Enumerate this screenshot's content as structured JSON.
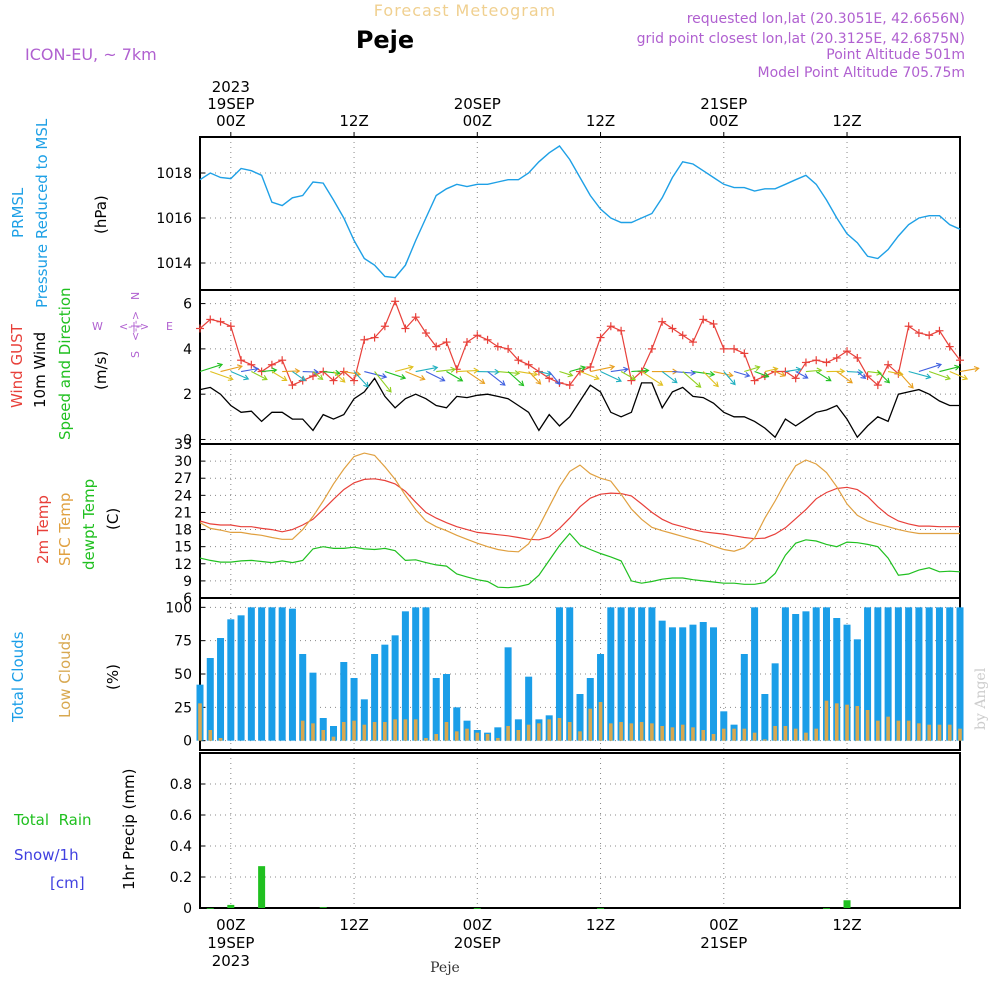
{
  "header": {
    "title": "Forecast Meteogram",
    "location": "Peje",
    "model": "ICON-EU, ~ 7km",
    "requested": "requested lon,lat (20.3051E, 42.6656N)",
    "gridpoint": "grid point closest lon,lat (20.3125E, 42.6875N)",
    "point_altitude": "Point Altitude 501m",
    "model_altitude": "Model Point Altitude 705.75m",
    "footer_location": "Peje",
    "watermark": "by Angel"
  },
  "colors": {
    "pressure": "#1ea0e6",
    "gust": "#e8403a",
    "wind": "#000000",
    "wind_dir": "#20c020",
    "temp2m": "#e8403a",
    "sfc_temp": "#e0a040",
    "dewpt": "#20c020",
    "total_clouds": "#1a9ee8",
    "low_clouds": "#d8a850",
    "rain": "#20c020",
    "snow": "#4040e0",
    "annotation": "#b060d0",
    "title": "#f0d090"
  },
  "time_axis": {
    "top_labels": [
      {
        "t": 0,
        "lines": [
          "2023",
          "19SEP",
          "00Z"
        ]
      },
      {
        "t": 12,
        "lines": [
          "12Z"
        ]
      },
      {
        "t": 24,
        "lines": [
          "20SEP",
          "00Z"
        ]
      },
      {
        "t": 36,
        "lines": [
          "12Z"
        ]
      },
      {
        "t": 48,
        "lines": [
          "21SEP",
          "00Z"
        ]
      },
      {
        "t": 60,
        "lines": [
          "12Z"
        ]
      }
    ],
    "bottom_labels": [
      {
        "t": 0,
        "lines": [
          "00Z",
          "19SEP",
          "2023"
        ]
      },
      {
        "t": 12,
        "lines": [
          "12Z"
        ]
      },
      {
        "t": 24,
        "lines": [
          "00Z",
          "20SEP"
        ]
      },
      {
        "t": 36,
        "lines": [
          "12Z"
        ]
      },
      {
        "t": 48,
        "lines": [
          "00Z",
          "21SEP"
        ]
      },
      {
        "t": 60,
        "lines": [
          "12Z"
        ]
      }
    ],
    "range_hours": [
      -3,
      71
    ]
  },
  "panel_labels": {
    "pressure": {
      "name1": "PRMSL",
      "name2": "Pressure Reduced to MSL",
      "unit": "(hPa)"
    },
    "wind": {
      "gust": "Wind GUST",
      "wind": "10m Wind",
      "dir": "Speed and Direction",
      "unit": "(m/s)",
      "compass_n": "N",
      "compass_s": "S",
      "compass_w": "W",
      "compass_e": "E",
      "compass_arrows": "<-|->"
    },
    "temp": {
      "t2m": "2m Temp",
      "sfc": "SFC Temp",
      "dew": "dewpt Temp",
      "unit": "(C)"
    },
    "clouds": {
      "total": "Total Clouds",
      "low": "Low Clouds",
      "unit": "(%)"
    },
    "precip": {
      "rain": "Total  Rain",
      "snow": "Snow/1h",
      "snow_unit": "[cm]",
      "unit": "1hr Precip (mm)"
    }
  },
  "chart_data": [
    {
      "type": "line",
      "id": "pressure",
      "ylabel": "PRMSL Pressure Reduced to MSL (hPa)",
      "ylim": [
        1012.8,
        1019.6
      ],
      "yticks": [
        1014,
        1016,
        1018
      ],
      "x": [
        -3,
        -2,
        -1,
        0,
        1,
        2,
        3,
        4,
        5,
        6,
        7,
        8,
        9,
        10,
        11,
        12,
        13,
        14,
        15,
        16,
        17,
        18,
        19,
        20,
        21,
        22,
        23,
        24,
        25,
        26,
        27,
        28,
        29,
        30,
        31,
        32,
        33,
        34,
        35,
        36,
        37,
        38,
        39,
        40,
        41,
        42,
        43,
        44,
        45,
        46,
        47,
        48,
        49,
        50,
        51,
        52,
        53,
        54,
        55,
        56,
        57,
        58,
        59,
        60,
        61,
        62,
        63,
        64,
        65,
        66,
        67,
        68,
        69,
        70,
        71
      ],
      "series": [
        {
          "name": "PRMSL",
          "values": [
            1017.7,
            1018.0,
            1017.8,
            1017.75,
            1018.2,
            1018.1,
            1017.9,
            1016.7,
            1016.55,
            1016.9,
            1017.0,
            1017.6,
            1017.55,
            1016.8,
            1016.0,
            1015.0,
            1014.2,
            1013.9,
            1013.4,
            1013.35,
            1013.9,
            1015.0,
            1016.0,
            1017.0,
            1017.3,
            1017.5,
            1017.4,
            1017.5,
            1017.5,
            1017.6,
            1017.7,
            1017.7,
            1018.0,
            1018.5,
            1018.9,
            1019.2,
            1018.6,
            1017.8,
            1017.0,
            1016.4,
            1016.0,
            1015.8,
            1015.8,
            1016.0,
            1016.2,
            1016.9,
            1017.8,
            1018.5,
            1018.4,
            1018.1,
            1017.8,
            1017.5,
            1017.35,
            1017.35,
            1017.2,
            1017.3,
            1017.3,
            1017.5,
            1017.7,
            1017.9,
            1017.5,
            1016.8,
            1016.0,
            1015.3,
            1014.9,
            1014.3,
            1014.2,
            1014.6,
            1015.2,
            1015.7,
            1016.0,
            1016.1,
            1016.1,
            1015.7,
            1015.5
          ]
        }
      ]
    },
    {
      "type": "line",
      "id": "wind",
      "ylabel": "Wind GUST / 10m Wind (m/s)",
      "ylim": [
        -0.2,
        6.6
      ],
      "yticks": [
        0,
        2,
        4,
        6
      ],
      "x": [
        -3,
        -2,
        -1,
        0,
        1,
        2,
        3,
        4,
        5,
        6,
        7,
        8,
        9,
        10,
        11,
        12,
        13,
        14,
        15,
        16,
        17,
        18,
        19,
        20,
        21,
        22,
        23,
        24,
        25,
        26,
        27,
        28,
        29,
        30,
        31,
        32,
        33,
        34,
        35,
        36,
        37,
        38,
        39,
        40,
        41,
        42,
        43,
        44,
        45,
        46,
        47,
        48,
        49,
        50,
        51,
        52,
        53,
        54,
        55,
        56,
        57,
        58,
        59,
        60,
        61,
        62,
        63,
        64,
        65,
        66,
        67,
        68,
        69,
        70,
        71
      ],
      "series": [
        {
          "name": "Wind GUST",
          "values": [
            4.9,
            5.3,
            5.2,
            5.0,
            3.5,
            3.3,
            3.0,
            3.3,
            3.5,
            2.4,
            2.6,
            2.8,
            3.0,
            2.6,
            3.0,
            2.6,
            4.4,
            4.5,
            5.0,
            6.1,
            4.9,
            5.4,
            4.7,
            4.1,
            4.3,
            3.1,
            4.3,
            4.6,
            4.4,
            4.1,
            4.0,
            3.5,
            3.3,
            3.0,
            2.7,
            2.5,
            2.4,
            3.0,
            3.2,
            4.5,
            5.0,
            4.8,
            2.6,
            3.0,
            4.0,
            5.2,
            4.9,
            4.6,
            4.3,
            5.3,
            5.1,
            4.0,
            4.0,
            3.8,
            2.6,
            2.8,
            3.0,
            3.0,
            2.7,
            3.4,
            3.5,
            3.4,
            3.6,
            3.9,
            3.6,
            2.8,
            2.4,
            3.3,
            2.9,
            5.0,
            4.7,
            4.6,
            4.8,
            4.1,
            3.5
          ]
        },
        {
          "name": "10m Wind",
          "values": [
            2.2,
            2.3,
            2.0,
            1.5,
            1.2,
            1.25,
            0.8,
            1.2,
            1.2,
            0.9,
            0.9,
            0.4,
            1.1,
            0.9,
            1.1,
            1.8,
            2.1,
            2.7,
            1.9,
            1.4,
            1.8,
            2.0,
            1.8,
            1.5,
            1.4,
            1.9,
            1.85,
            1.95,
            2.0,
            1.9,
            1.8,
            1.5,
            1.2,
            0.4,
            1.1,
            0.6,
            1.0,
            1.7,
            2.4,
            2.1,
            1.2,
            1.0,
            1.2,
            2.5,
            2.5,
            1.4,
            2.1,
            2.3,
            1.9,
            1.85,
            1.6,
            1.2,
            1.0,
            1.0,
            0.8,
            0.5,
            0.1,
            0.9,
            0.6,
            0.9,
            1.2,
            1.3,
            1.5,
            0.9,
            0.1,
            0.6,
            1.0,
            0.8,
            2.0,
            2.1,
            2.2,
            2.0,
            1.7,
            1.5,
            1.5
          ]
        }
      ],
      "wind_arrows_note": "Speed and Direction arrows drawn near 3 m/s"
    },
    {
      "type": "line",
      "id": "temperature",
      "ylabel": "2m Temp / SFC Temp / dewpt Temp (C)",
      "ylim": [
        6,
        33
      ],
      "yticks": [
        6,
        9,
        12,
        15,
        18,
        21,
        24,
        27,
        30,
        33
      ],
      "x": [
        -3,
        -2,
        -1,
        0,
        1,
        2,
        3,
        4,
        5,
        6,
        7,
        8,
        9,
        10,
        11,
        12,
        13,
        14,
        15,
        16,
        17,
        18,
        19,
        20,
        21,
        22,
        23,
        24,
        25,
        26,
        27,
        28,
        29,
        30,
        31,
        32,
        33,
        34,
        35,
        36,
        37,
        38,
        39,
        40,
        41,
        42,
        43,
        44,
        45,
        46,
        47,
        48,
        49,
        50,
        51,
        52,
        53,
        54,
        55,
        56,
        57,
        58,
        59,
        60,
        61,
        62,
        63,
        64,
        65,
        66,
        67,
        68,
        69,
        70,
        71
      ],
      "series": [
        {
          "name": "2m Temp",
          "values": [
            19.5,
            19.0,
            18.8,
            18.8,
            18.5,
            18.5,
            18.2,
            18.0,
            17.6,
            18.0,
            18.8,
            19.8,
            21.5,
            23.3,
            25.0,
            26.2,
            26.8,
            26.9,
            26.6,
            26.0,
            24.7,
            22.8,
            21.0,
            20.0,
            19.2,
            18.5,
            18.0,
            17.5,
            17.3,
            17.1,
            16.9,
            16.6,
            16.3,
            16.2,
            16.7,
            18.2,
            20.0,
            22.0,
            23.5,
            24.2,
            24.4,
            24.3,
            23.9,
            22.5,
            21.0,
            19.8,
            19.0,
            18.5,
            18.0,
            17.6,
            17.4,
            17.2,
            16.9,
            16.6,
            16.4,
            16.5,
            17.2,
            18.3,
            19.9,
            21.5,
            23.4,
            24.5,
            25.2,
            25.4,
            25.0,
            23.8,
            22.0,
            20.5,
            19.5,
            19.0,
            18.6,
            18.6,
            18.5,
            18.5,
            18.5
          ]
        },
        {
          "name": "SFC Temp",
          "values": [
            19.2,
            18.2,
            17.9,
            17.5,
            17.5,
            17.2,
            17.0,
            16.6,
            16.3,
            16.3,
            18.0,
            20.3,
            23.0,
            26.0,
            28.6,
            30.8,
            31.4,
            31.0,
            29.0,
            26.8,
            24.0,
            21.5,
            19.5,
            18.5,
            17.8,
            17.0,
            16.3,
            15.6,
            15.0,
            14.5,
            14.2,
            14.1,
            15.5,
            18.5,
            22.0,
            25.5,
            28.2,
            29.3,
            27.8,
            27.0,
            26.5,
            24.2,
            21.6,
            19.8,
            18.4,
            17.8,
            17.3,
            16.8,
            16.3,
            15.8,
            15.1,
            14.5,
            14.2,
            14.8,
            16.5,
            20.0,
            23.0,
            26.3,
            29.2,
            30.2,
            29.5,
            28.0,
            25.5,
            22.5,
            20.5,
            19.5,
            19.0,
            18.5,
            18.0,
            17.6,
            17.3,
            17.3,
            17.3,
            17.3,
            17.3
          ]
        },
        {
          "name": "dewpt Temp",
          "values": [
            13.0,
            12.6,
            12.3,
            12.3,
            12.5,
            12.6,
            12.4,
            12.2,
            12.5,
            12.2,
            12.6,
            14.6,
            15.0,
            14.7,
            14.7,
            14.9,
            14.6,
            14.5,
            14.7,
            14.3,
            12.6,
            12.7,
            12.2,
            11.8,
            11.6,
            10.2,
            9.7,
            9.2,
            8.9,
            7.9,
            7.8,
            8.0,
            8.4,
            10.0,
            12.6,
            15.2,
            17.3,
            15.3,
            14.5,
            13.8,
            13.2,
            12.5,
            9.0,
            8.6,
            8.9,
            9.3,
            9.5,
            9.5,
            9.2,
            9.0,
            8.8,
            8.6,
            8.6,
            8.4,
            8.4,
            8.7,
            10.3,
            13.5,
            15.6,
            16.2,
            16.0,
            15.4,
            15.0,
            15.8,
            15.7,
            15.4,
            15.0,
            13.0,
            10.0,
            10.2,
            10.9,
            11.3,
            10.6,
            10.7,
            10.6
          ]
        }
      ]
    },
    {
      "type": "bar",
      "id": "clouds",
      "ylabel": "Total Clouds / Low Clouds (%)",
      "ylim": [
        -7,
        107
      ],
      "yticks": [
        0,
        25,
        50,
        75,
        100
      ],
      "x": [
        -3,
        -2,
        -1,
        0,
        1,
        2,
        3,
        4,
        5,
        6,
        7,
        8,
        9,
        10,
        11,
        12,
        13,
        14,
        15,
        16,
        17,
        18,
        19,
        20,
        21,
        22,
        23,
        24,
        25,
        26,
        27,
        28,
        29,
        30,
        31,
        32,
        33,
        34,
        35,
        36,
        37,
        38,
        39,
        40,
        41,
        42,
        43,
        44,
        45,
        46,
        47,
        48,
        49,
        50,
        51,
        52,
        53,
        54,
        55,
        56,
        57,
        58,
        59,
        60,
        61,
        62,
        63,
        64,
        65,
        66,
        67,
        68,
        69,
        70,
        71
      ],
      "series": [
        {
          "name": "Total Clouds",
          "values": [
            42,
            62,
            77,
            91,
            94,
            100,
            100,
            100,
            100,
            99,
            65,
            51,
            17,
            11,
            59,
            47,
            31,
            65,
            72,
            79,
            97,
            100,
            100,
            47,
            50,
            25,
            15,
            8,
            6,
            10,
            70,
            16,
            48,
            16,
            19,
            100,
            100,
            35,
            47,
            65,
            100,
            100,
            100,
            100,
            100,
            90,
            85,
            85,
            87,
            89,
            85,
            22,
            12,
            65,
            100,
            35,
            58,
            100,
            95,
            97,
            100,
            100,
            92,
            87,
            76,
            100,
            100,
            100,
            100,
            100,
            100,
            100,
            100,
            100,
            100
          ]
        },
        {
          "name": "Low Clouds",
          "values": [
            28,
            8,
            2,
            0,
            0,
            0,
            0,
            0,
            0,
            0,
            15,
            13,
            8,
            3,
            14,
            15,
            12,
            14,
            14,
            16,
            16,
            16,
            2,
            5,
            14,
            7,
            9,
            6,
            5,
            2,
            11,
            8,
            12,
            13,
            16,
            17,
            14,
            7,
            24,
            29,
            13,
            14,
            13,
            14,
            13,
            11,
            10,
            12,
            10,
            8,
            5,
            9,
            9,
            9,
            6,
            1,
            11,
            11,
            9,
            6,
            9,
            30,
            28,
            27,
            26,
            23,
            15,
            18,
            15,
            15,
            13,
            12,
            12,
            12,
            9
          ]
        }
      ]
    },
    {
      "type": "bar",
      "id": "precip",
      "ylabel": "1hr Precip (mm)",
      "ylim": [
        0,
        1.0
      ],
      "yticks": [
        0,
        0.2,
        0.4,
        0.6,
        0.8
      ],
      "x": [
        -2,
        0,
        3,
        9,
        24,
        36,
        58,
        60
      ],
      "series": [
        {
          "name": "Total Rain",
          "values": [
            0.0,
            0.02,
            0.27,
            0.005,
            0.0,
            0.0,
            0.0,
            0.05
          ]
        }
      ]
    }
  ]
}
